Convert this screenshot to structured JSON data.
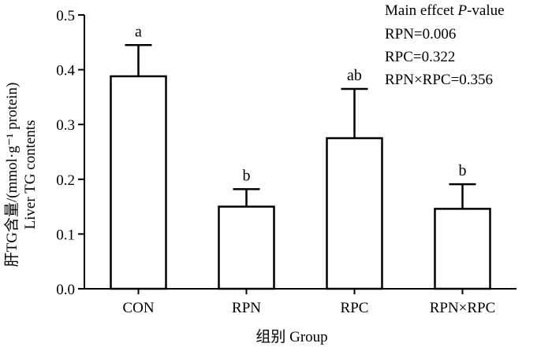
{
  "chart_data": {
    "type": "bar",
    "categories": [
      "CON",
      "RPN",
      "RPC",
      "RPN×RPC"
    ],
    "values": [
      0.388,
      0.15,
      0.275,
      0.146
    ],
    "error_bars": [
      0.057,
      0.032,
      0.09,
      0.045
    ],
    "significance_letters": [
      "a",
      "b",
      "ab",
      "b"
    ],
    "xlabel": "组别  Group",
    "ylabel_line1": "肝TG含量/(mmol·g⁻¹ protein)",
    "ylabel_line2": "Liver TG contents",
    "ylim": [
      0,
      0.5
    ],
    "yticks": [
      "0.0",
      "0.1",
      "0.2",
      "0.3",
      "0.4",
      "0.5"
    ],
    "grid": false,
    "bar_fill": "#ffffff",
    "bar_stroke": "#000000",
    "annotation": {
      "heading_prefix": "Main effcet ",
      "heading_p": "P",
      "heading_suffix": "-value",
      "lines": [
        "RPN=0.006",
        "RPC=0.322",
        "RPN×RPC=0.356"
      ]
    }
  }
}
